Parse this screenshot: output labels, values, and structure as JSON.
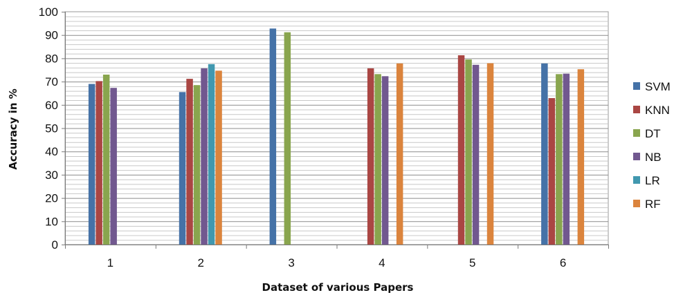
{
  "chart_data": {
    "type": "bar",
    "title": "",
    "xlabel": "Dataset of various Papers",
    "ylabel": "Accuracy in %",
    "ylim": [
      0,
      100
    ],
    "yticks": [
      0,
      10,
      20,
      30,
      40,
      50,
      60,
      70,
      80,
      90,
      100
    ],
    "grid": true,
    "legend_position": "right",
    "categories": [
      "1",
      "2",
      "3",
      "4",
      "5",
      "6"
    ],
    "series": [
      {
        "name": "SVM",
        "color": "#4572A7",
        "values": [
          69,
          65.5,
          92.8,
          null,
          null,
          77.8
        ]
      },
      {
        "name": "KNN",
        "color": "#AA4643",
        "values": [
          70.2,
          71.2,
          null,
          75.7,
          81.3,
          62.9
        ]
      },
      {
        "name": "DT",
        "color": "#89A54E",
        "values": [
          73,
          68.5,
          91.2,
          73.2,
          79.5,
          73.2
        ]
      },
      {
        "name": "NB",
        "color": "#71588F",
        "values": [
          67.3,
          75.7,
          null,
          72.3,
          77.2,
          73.4
        ]
      },
      {
        "name": "LR",
        "color": "#4198AF",
        "values": [
          null,
          77.5,
          null,
          null,
          null,
          null
        ]
      },
      {
        "name": "RF",
        "color": "#DB843D",
        "values": [
          null,
          74.7,
          null,
          77.8,
          77.9,
          75.3
        ]
      }
    ]
  }
}
